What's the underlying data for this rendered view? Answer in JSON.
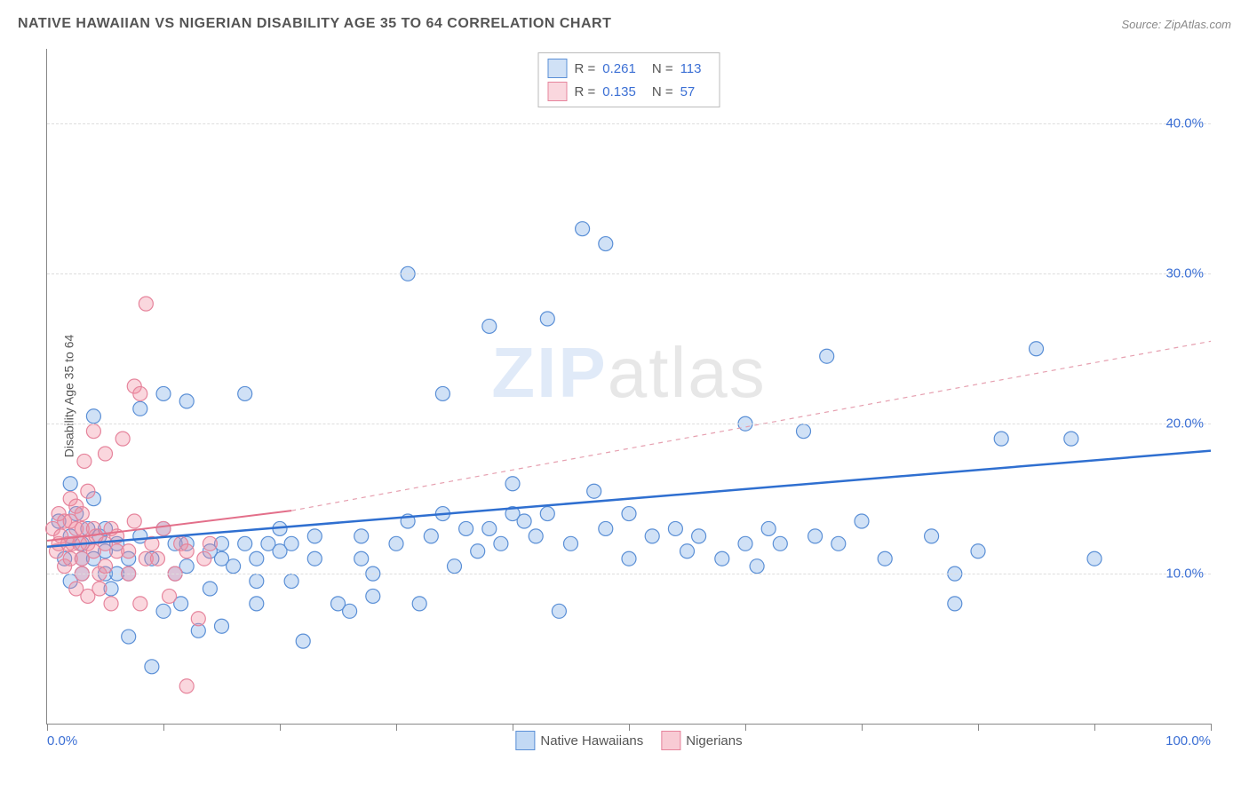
{
  "header": {
    "title": "NATIVE HAWAIIAN VS NIGERIAN DISABILITY AGE 35 TO 64 CORRELATION CHART",
    "source": "Source: ZipAtlas.com"
  },
  "watermark": {
    "part1": "ZIP",
    "part2": "atlas"
  },
  "chart": {
    "type": "scatter",
    "ylabel": "Disability Age 35 to 64",
    "xlim": [
      0,
      100
    ],
    "ylim": [
      0,
      45
    ],
    "xticks": [
      0,
      10,
      20,
      30,
      40,
      50,
      60,
      70,
      80,
      90,
      100
    ],
    "xtick_labels": {
      "0": "0.0%",
      "100": "100.0%"
    },
    "yticks": [
      10,
      20,
      30,
      40
    ],
    "ytick_labels": {
      "10": "10.0%",
      "20": "20.0%",
      "30": "30.0%",
      "40": "40.0%"
    },
    "background_color": "#ffffff",
    "grid_color": "#dddddd",
    "axis_color": "#888888",
    "marker_radius": 8,
    "marker_stroke_width": 1.2,
    "series": [
      {
        "name": "Native Hawaiians",
        "fill": "rgba(120,170,230,0.35)",
        "stroke": "#5a8fd6",
        "r_value": "0.261",
        "n_value": "113",
        "trend": {
          "x1": 0,
          "y1": 11.8,
          "x2": 100,
          "y2": 18.2,
          "color": "#2f6fd0",
          "width": 2.5,
          "dash": "none"
        },
        "trend_ext": null,
        "points": [
          [
            1,
            13.5
          ],
          [
            1.5,
            11
          ],
          [
            2,
            16
          ],
          [
            2,
            12.5
          ],
          [
            2,
            9.5
          ],
          [
            2.5,
            14
          ],
          [
            3,
            11
          ],
          [
            3,
            10
          ],
          [
            3,
            12
          ],
          [
            3.5,
            13
          ],
          [
            4,
            20.5
          ],
          [
            4,
            15
          ],
          [
            4,
            11
          ],
          [
            4.5,
            12.5
          ],
          [
            5,
            10
          ],
          [
            5,
            13
          ],
          [
            5,
            11.5
          ],
          [
            5.5,
            9
          ],
          [
            6,
            10
          ],
          [
            6,
            12
          ],
          [
            7,
            11
          ],
          [
            7,
            10
          ],
          [
            7,
            5.8
          ],
          [
            8,
            12.5
          ],
          [
            8,
            21
          ],
          [
            9,
            11
          ],
          [
            9,
            3.8
          ],
          [
            10,
            22
          ],
          [
            10,
            13
          ],
          [
            10,
            7.5
          ],
          [
            11,
            12
          ],
          [
            11,
            10
          ],
          [
            11.5,
            8
          ],
          [
            12,
            21.5
          ],
          [
            12,
            12
          ],
          [
            12,
            10.5
          ],
          [
            13,
            6.2
          ],
          [
            14,
            11.5
          ],
          [
            14,
            9
          ],
          [
            15,
            12
          ],
          [
            15,
            6.5
          ],
          [
            15,
            11
          ],
          [
            16,
            10.5
          ],
          [
            17,
            12
          ],
          [
            17,
            22
          ],
          [
            18,
            11
          ],
          [
            18,
            9.5
          ],
          [
            18,
            8
          ],
          [
            19,
            12
          ],
          [
            20,
            11.5
          ],
          [
            20,
            13
          ],
          [
            21,
            12
          ],
          [
            21,
            9.5
          ],
          [
            22,
            5.5
          ],
          [
            23,
            12.5
          ],
          [
            23,
            11
          ],
          [
            25,
            8
          ],
          [
            26,
            7.5
          ],
          [
            27,
            11
          ],
          [
            27,
            12.5
          ],
          [
            28,
            10
          ],
          [
            28,
            8.5
          ],
          [
            30,
            12
          ],
          [
            31,
            30
          ],
          [
            31,
            13.5
          ],
          [
            32,
            8
          ],
          [
            33,
            12.5
          ],
          [
            34,
            22
          ],
          [
            34,
            14
          ],
          [
            35,
            10.5
          ],
          [
            36,
            13
          ],
          [
            37,
            11.5
          ],
          [
            38,
            26.5
          ],
          [
            38,
            13
          ],
          [
            39,
            12
          ],
          [
            40,
            14
          ],
          [
            40,
            16
          ],
          [
            41,
            13.5
          ],
          [
            42,
            12.5
          ],
          [
            43,
            14
          ],
          [
            43,
            27
          ],
          [
            44,
            7.5
          ],
          [
            45,
            12
          ],
          [
            46,
            33
          ],
          [
            47,
            15.5
          ],
          [
            48,
            13
          ],
          [
            48,
            32
          ],
          [
            50,
            11
          ],
          [
            50,
            14
          ],
          [
            52,
            12.5
          ],
          [
            54,
            13
          ],
          [
            55,
            11.5
          ],
          [
            56,
            12.5
          ],
          [
            58,
            11
          ],
          [
            60,
            20
          ],
          [
            60,
            12
          ],
          [
            61,
            10.5
          ],
          [
            62,
            13
          ],
          [
            63,
            12
          ],
          [
            65,
            19.5
          ],
          [
            66,
            12.5
          ],
          [
            67,
            24.5
          ],
          [
            68,
            12
          ],
          [
            70,
            13.5
          ],
          [
            72,
            11
          ],
          [
            76,
            12.5
          ],
          [
            78,
            10
          ],
          [
            78,
            8
          ],
          [
            80,
            11.5
          ],
          [
            82,
            19
          ],
          [
            85,
            25
          ],
          [
            88,
            19
          ],
          [
            90,
            11
          ]
        ]
      },
      {
        "name": "Nigerians",
        "fill": "rgba(240,140,160,0.35)",
        "stroke": "#e6849c",
        "r_value": "0.135",
        "n_value": "57",
        "trend": {
          "x1": 0,
          "y1": 12.2,
          "x2": 21,
          "y2": 14.2,
          "color": "#e36f8a",
          "width": 2,
          "dash": "none"
        },
        "trend_ext": {
          "x1": 21,
          "y1": 14.2,
          "x2": 100,
          "y2": 25.5,
          "color": "#e6a0b0",
          "width": 1.2,
          "dash": "5,5"
        },
        "points": [
          [
            0.5,
            13
          ],
          [
            0.8,
            11.5
          ],
          [
            1,
            12
          ],
          [
            1,
            14
          ],
          [
            1.2,
            12.5
          ],
          [
            1.5,
            10.5
          ],
          [
            1.5,
            13.5
          ],
          [
            1.8,
            12
          ],
          [
            2,
            11
          ],
          [
            2,
            13.5
          ],
          [
            2,
            15
          ],
          [
            2.2,
            12
          ],
          [
            2.5,
            9
          ],
          [
            2.5,
            13
          ],
          [
            2.5,
            14.5
          ],
          [
            2.8,
            12
          ],
          [
            3,
            11
          ],
          [
            3,
            10
          ],
          [
            3,
            13
          ],
          [
            3,
            14
          ],
          [
            3.2,
            17.5
          ],
          [
            3.5,
            12
          ],
          [
            3.5,
            8.5
          ],
          [
            3.5,
            15.5
          ],
          [
            4,
            11.5
          ],
          [
            4,
            13
          ],
          [
            4,
            19.5
          ],
          [
            4.2,
            12.5
          ],
          [
            4.5,
            10
          ],
          [
            4.5,
            9
          ],
          [
            5,
            12
          ],
          [
            5,
            18
          ],
          [
            5,
            10.5
          ],
          [
            5.5,
            13
          ],
          [
            5.5,
            8
          ],
          [
            6,
            11.5
          ],
          [
            6,
            12.5
          ],
          [
            6.5,
            19
          ],
          [
            7,
            10
          ],
          [
            7,
            11.5
          ],
          [
            7.5,
            13.5
          ],
          [
            7.5,
            22.5
          ],
          [
            8,
            8
          ],
          [
            8,
            22
          ],
          [
            8.5,
            11
          ],
          [
            8.5,
            28
          ],
          [
            9,
            12
          ],
          [
            9.5,
            11
          ],
          [
            10,
            13
          ],
          [
            10.5,
            8.5
          ],
          [
            11,
            10
          ],
          [
            11.5,
            12
          ],
          [
            12,
            2.5
          ],
          [
            12,
            11.5
          ],
          [
            13,
            7
          ],
          [
            13.5,
            11
          ],
          [
            14,
            12
          ]
        ]
      }
    ]
  },
  "legend_bottom": [
    {
      "label": "Native Hawaiians",
      "fill": "rgba(120,170,230,0.45)",
      "stroke": "#5a8fd6"
    },
    {
      "label": "Nigerians",
      "fill": "rgba(240,140,160,0.45)",
      "stroke": "#e6849c"
    }
  ]
}
